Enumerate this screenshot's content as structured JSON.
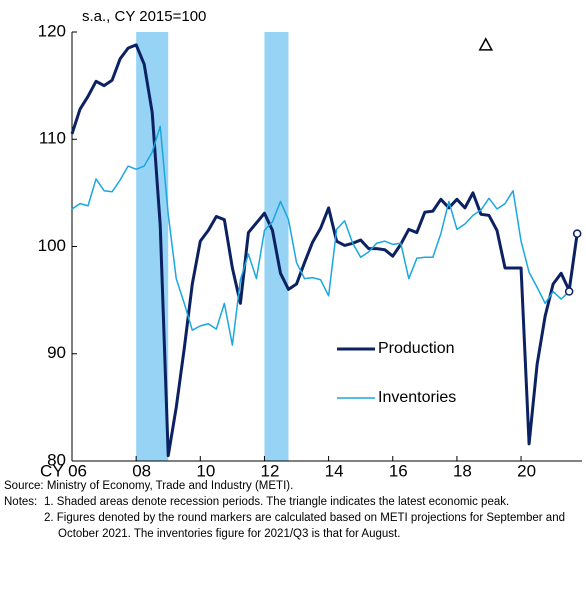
{
  "chart_data": {
    "type": "line",
    "subtitle": "s.a., CY 2015=100",
    "x": [
      2006,
      2006.25,
      2006.5,
      2006.75,
      2007,
      2007.25,
      2007.5,
      2007.75,
      2008,
      2008.25,
      2008.5,
      2008.75,
      2009,
      2009.25,
      2009.5,
      2009.75,
      2010,
      2010.25,
      2010.5,
      2010.75,
      2011,
      2011.25,
      2011.5,
      2011.75,
      2012,
      2012.25,
      2012.5,
      2012.75,
      2013,
      2013.25,
      2013.5,
      2013.75,
      2014,
      2014.25,
      2014.5,
      2014.75,
      2015,
      2015.25,
      2015.5,
      2015.75,
      2016,
      2016.25,
      2016.5,
      2016.75,
      2017,
      2017.25,
      2017.5,
      2017.75,
      2018,
      2018.25,
      2018.5,
      2018.75,
      2019,
      2019.25,
      2019.5,
      2019.75,
      2020,
      2020.25,
      2020.5,
      2020.75,
      2021,
      2021.25,
      2021.5,
      2021.75
    ],
    "series": [
      {
        "name": "Production",
        "color": "#0b2161",
        "values": [
          110.5,
          112.8,
          114,
          115.4,
          115,
          115.5,
          117.5,
          118.5,
          118.8,
          117,
          112.5,
          102,
          80.5,
          85,
          90.5,
          96.5,
          100.5,
          101.5,
          102.8,
          102.5,
          98,
          94.7,
          101.3,
          102.2,
          103.1,
          101.5,
          97.5,
          96,
          96.5,
          98.5,
          100.4,
          101.7,
          103.6,
          100.5,
          100.1,
          100.3,
          100.6,
          99.8,
          99.8,
          99.7,
          99.1,
          100.2,
          101.6,
          101.3,
          103.2,
          103.3,
          104.4,
          103.6,
          104.4,
          103.6,
          105,
          103,
          102.9,
          101.5,
          98,
          98,
          98,
          81.6,
          89,
          93.5,
          96.5,
          97.5,
          95.9,
          101.2
        ]
      },
      {
        "name": "Inventories",
        "color": "#1aa7e0",
        "values": [
          103.5,
          104,
          103.8,
          106.3,
          105.2,
          105.1,
          106.2,
          107.5,
          107.2,
          107.5,
          108.8,
          111.2,
          103,
          97,
          94.7,
          92.2,
          92.6,
          92.8,
          92.3,
          94.7,
          90.8,
          96.9,
          99.3,
          97,
          101.5,
          102.3,
          104.2,
          102.5,
          98.5,
          97,
          97.1,
          96.9,
          95.4,
          101.6,
          102.4,
          100.3,
          99,
          99.5,
          100.3,
          100.5,
          100.2,
          100.3,
          97,
          98.9,
          99,
          99,
          101.2,
          104.2,
          101.6,
          102.1,
          102.9,
          103.4,
          104.5,
          103.5,
          104,
          105.2,
          100.5,
          97.6,
          96.2,
          94.7,
          95.8,
          95.1,
          95.8,
          null
        ]
      }
    ],
    "recessions": [
      [
        2008,
        2009
      ],
      [
        2012,
        2012.75
      ]
    ],
    "peak": {
      "x": 2018.9,
      "y": 118.8
    },
    "xlim": [
      2006,
      2021.9
    ],
    "xticks": [
      {
        "value": 2006,
        "label": "CY 06"
      },
      {
        "value": 2008,
        "label": "08"
      },
      {
        "value": 2010,
        "label": "10"
      },
      {
        "value": 2012,
        "label": "12"
      },
      {
        "value": 2014,
        "label": "14"
      },
      {
        "value": 2016,
        "label": "16"
      },
      {
        "value": 2018,
        "label": "18"
      },
      {
        "value": 2020,
        "label": "20"
      }
    ],
    "ylim": [
      80,
      120
    ],
    "yticks": [
      80,
      90,
      100,
      110,
      120
    ],
    "source": "Source: Ministry of Economy, Trade and Industry (METI).",
    "notes_label": "Notes:",
    "notes": [
      "1. Shaded areas denote recession periods. The triangle indicates the latest economic peak.",
      "2. Figures denoted by the round markers are calculated based on METI projections for September and October 2021. The inventories figure for 2021/Q3 is that for August."
    ]
  }
}
